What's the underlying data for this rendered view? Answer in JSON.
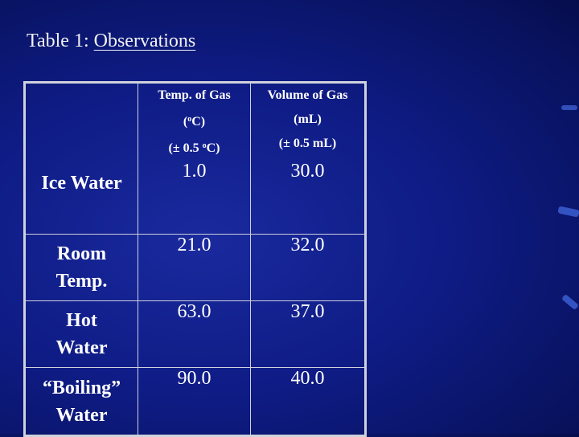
{
  "slide": {
    "title_prefix": "Table 1: ",
    "title_underlined": "Observations",
    "accent_color": "#3f63d8",
    "background_color": "#0f1c86"
  },
  "table": {
    "columns": [
      {
        "line1": "Temp. of Gas",
        "line2_pre": "(",
        "line2_sup": "o",
        "line2_post": "C)",
        "line3_pre": "(± 0.5 ",
        "line3_sup": "o",
        "line3_post": "C)"
      },
      {
        "line1": "Volume of Gas",
        "line2": "(mL)",
        "line3": "(± 0.5 mL)"
      }
    ],
    "rows": [
      {
        "label": [
          "Ice Water"
        ],
        "temp": "1.0",
        "volume": "30.0"
      },
      {
        "label": [
          "Room",
          "Temp."
        ],
        "temp": "21.0",
        "volume": "32.0"
      },
      {
        "label": [
          "Hot",
          "Water"
        ],
        "temp": "63.0",
        "volume": "37.0"
      },
      {
        "label": [
          "“Boiling”",
          "Water"
        ],
        "temp": "90.0",
        "volume": "40.0"
      }
    ]
  }
}
